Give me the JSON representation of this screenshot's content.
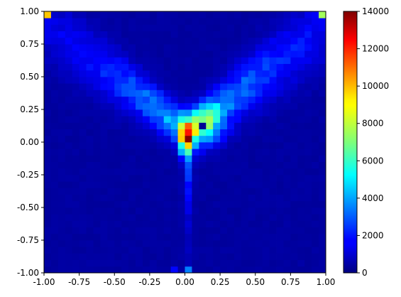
{
  "chart_data": {
    "type": "heatmap",
    "title": "",
    "xlabel": "",
    "ylabel": "",
    "xlim": [
      -1.0,
      1.0
    ],
    "ylim": [
      -1.0,
      1.0
    ],
    "x_ticks": [
      "-1.00",
      "-0.75",
      "-0.50",
      "-0.25",
      "0.00",
      "0.25",
      "0.50",
      "0.75",
      "1.00"
    ],
    "y_ticks": [
      "-1.00",
      "-0.75",
      "-0.50",
      "-0.25",
      "0.00",
      "0.25",
      "0.50",
      "0.75",
      "1.00"
    ],
    "colorbar": {
      "colormap": "jet",
      "range": [
        0,
        14000
      ],
      "ticks": [
        "0",
        "2000",
        "4000",
        "6000",
        "8000",
        "10000",
        "12000",
        "14000"
      ]
    },
    "grid": false,
    "bins": [
      40,
      40
    ],
    "bin_width": 0.05,
    "hotspots": [
      {
        "x": 0.025,
        "y": 0.025,
        "value": 14000
      },
      {
        "x": 0.025,
        "y": 0.075,
        "value": 12000
      },
      {
        "x": 0.025,
        "y": 0.125,
        "value": 11000
      },
      {
        "x": 0.075,
        "y": 0.075,
        "value": 9000
      },
      {
        "x": 0.075,
        "y": 0.125,
        "value": 8200
      },
      {
        "x": 0.125,
        "y": 0.125,
        "value": 300
      },
      {
        "x": -0.975,
        "y": 0.975,
        "value": 9500
      },
      {
        "x": 0.975,
        "y": 0.975,
        "value": 7500
      },
      {
        "x": 0.025,
        "y": -0.975,
        "value": 3500
      },
      {
        "x": -0.075,
        "y": -0.975,
        "value": 1800
      }
    ]
  }
}
